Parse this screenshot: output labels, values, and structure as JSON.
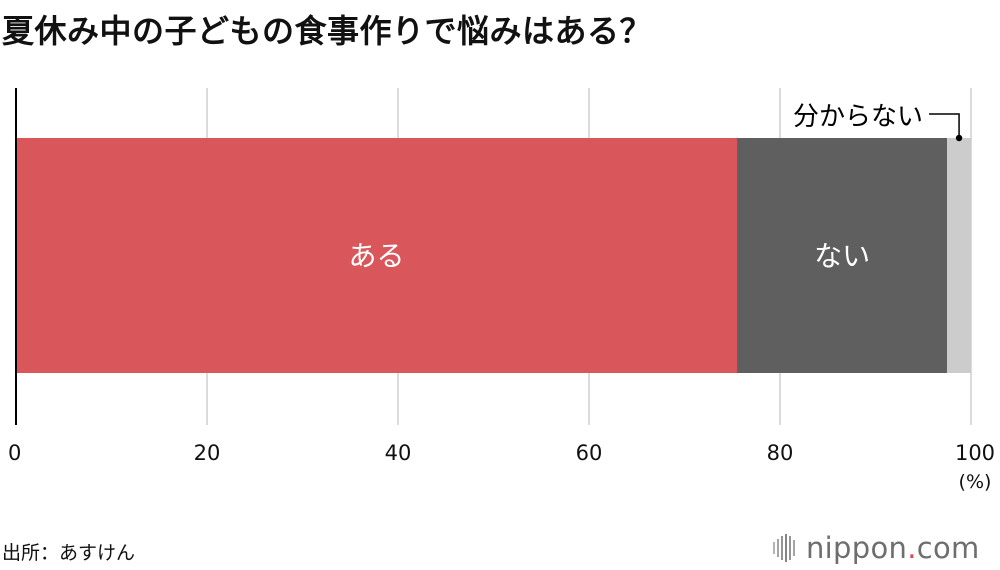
{
  "title": "夏休み中の子どもの食事作りで悩みはある？",
  "source": "出所：あすけん",
  "logo": {
    "prefix": "nippon",
    "dot": ".",
    "suffix": "com"
  },
  "chart_data": {
    "type": "bar",
    "orientation": "horizontal",
    "stacked": true,
    "title": "夏休み中の子どもの食事作りで悩みはある？",
    "xlim": [
      0,
      100
    ],
    "xticks": [
      "0",
      "20",
      "40",
      "60",
      "80",
      "100"
    ],
    "unit": "(%)",
    "grid": true,
    "series": [
      {
        "name": "ある",
        "value": 75.5,
        "color": "#d9575b",
        "label_color": "#ffffff"
      },
      {
        "name": "ない",
        "value": 22.0,
        "color": "#5f5f5f",
        "label_color": "#ffffff"
      },
      {
        "name": "分からない",
        "value": 2.5,
        "color": "#cccccc",
        "label_color": "#000000",
        "label_outside": true
      }
    ]
  }
}
